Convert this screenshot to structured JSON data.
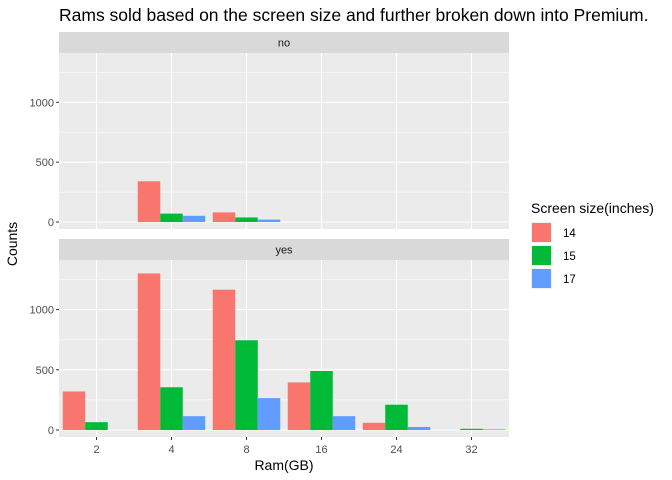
{
  "chart_data": {
    "type": "bar",
    "title": "Rams sold based on the screen size and further broken down into Premium.",
    "xlabel": "Ram(GB)",
    "ylabel": "Counts",
    "categories": [
      "2",
      "4",
      "8",
      "16",
      "24",
      "32"
    ],
    "ylim": [
      0,
      1370
    ],
    "yticks": [
      0,
      500,
      1000
    ],
    "grid": true,
    "legend": {
      "title": "Screen size(inches)",
      "placement": "right",
      "entries": [
        {
          "label": "14",
          "color": "#F8766D"
        },
        {
          "label": "15",
          "color": "#00BA38"
        },
        {
          "label": "17",
          "color": "#619CFF"
        }
      ]
    },
    "panels": [
      {
        "label": "no",
        "series": [
          {
            "name": "14",
            "values": [
              null,
              340,
              80,
              null,
              null,
              null
            ]
          },
          {
            "name": "15",
            "values": [
              null,
              70,
              38,
              null,
              null,
              null
            ]
          },
          {
            "name": "17",
            "values": [
              null,
              52,
              20,
              null,
              null,
              null
            ]
          }
        ]
      },
      {
        "label": "yes",
        "series": [
          {
            "name": "14",
            "values": [
              320,
              1300,
              1165,
              395,
              60,
              null
            ]
          },
          {
            "name": "15",
            "values": [
              65,
              355,
              745,
              490,
              210,
              10
            ]
          },
          {
            "name": "17",
            "values": [
              null,
              115,
              265,
              115,
              25,
              5
            ]
          }
        ]
      }
    ]
  }
}
